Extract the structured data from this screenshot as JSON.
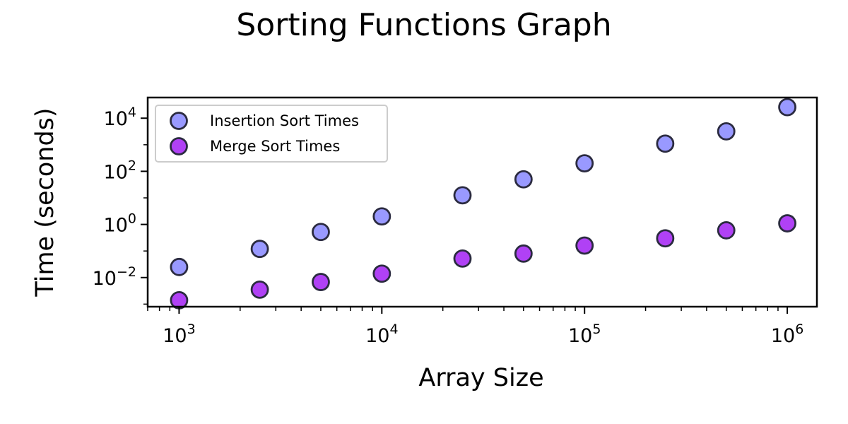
{
  "chart_data": {
    "type": "scatter",
    "title": "Sorting Functions Graph",
    "xlabel": "Array Size",
    "ylabel": "Time (seconds)",
    "xscale": "log",
    "yscale": "log",
    "xlim": [
      700,
      1400000
    ],
    "ylim": [
      0.0008,
      60000
    ],
    "grid": false,
    "legend": "upper-left",
    "x_ticks": [
      {
        "value": 1000,
        "base": "10",
        "exp": "3"
      },
      {
        "value": 10000,
        "base": "10",
        "exp": "4"
      },
      {
        "value": 100000,
        "base": "10",
        "exp": "5"
      },
      {
        "value": 1000000,
        "base": "10",
        "exp": "6"
      }
    ],
    "y_ticks": [
      {
        "value": 0.01,
        "base": "10",
        "exp": "−2"
      },
      {
        "value": 1,
        "base": "10",
        "exp": "0"
      },
      {
        "value": 100,
        "base": "10",
        "exp": "2"
      },
      {
        "value": 10000,
        "base": "10",
        "exp": "4"
      }
    ],
    "series": [
      {
        "name": "Insertion Sort Times",
        "color": "#9999ff",
        "edge_color": "#2b2b40",
        "points": [
          {
            "x": 1000,
            "y": 0.025
          },
          {
            "x": 2500,
            "y": 0.12
          },
          {
            "x": 5000,
            "y": 0.52
          },
          {
            "x": 10000,
            "y": 2.0
          },
          {
            "x": 25000,
            "y": 12.5
          },
          {
            "x": 50000,
            "y": 50
          },
          {
            "x": 100000,
            "y": 200
          },
          {
            "x": 250000,
            "y": 1100
          },
          {
            "x": 500000,
            "y": 3200
          },
          {
            "x": 1000000,
            "y": 26000
          }
        ]
      },
      {
        "name": "Merge Sort Times",
        "color": "#b041f5",
        "edge_color": "#2b2b40",
        "points": [
          {
            "x": 1000,
            "y": 0.0014
          },
          {
            "x": 2500,
            "y": 0.0035
          },
          {
            "x": 5000,
            "y": 0.0068
          },
          {
            "x": 10000,
            "y": 0.014
          },
          {
            "x": 25000,
            "y": 0.052
          },
          {
            "x": 50000,
            "y": 0.08
          },
          {
            "x": 100000,
            "y": 0.16
          },
          {
            "x": 250000,
            "y": 0.3
          },
          {
            "x": 500000,
            "y": 0.6
          },
          {
            "x": 1000000,
            "y": 1.1
          }
        ]
      }
    ]
  }
}
